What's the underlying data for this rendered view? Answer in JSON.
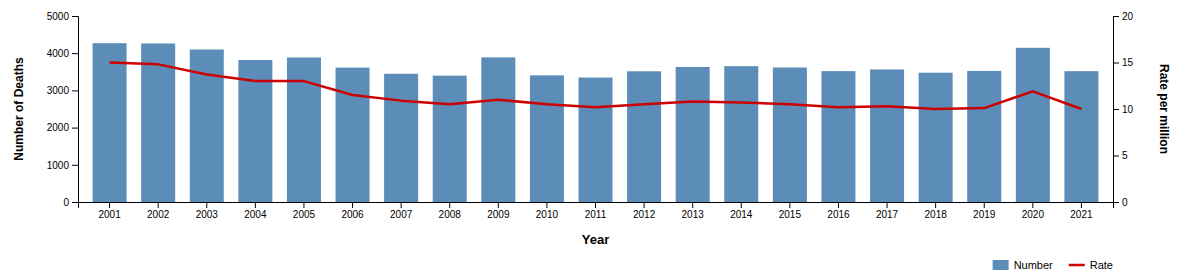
{
  "chart_data": {
    "type": "bar",
    "categories": [
      "2001",
      "2002",
      "2003",
      "2004",
      "2005",
      "2006",
      "2007",
      "2008",
      "2009",
      "2010",
      "2011",
      "2012",
      "2013",
      "2014",
      "2015",
      "2016",
      "2017",
      "2018",
      "2019",
      "2020",
      "2021"
    ],
    "xlabel": "Year",
    "ylabel": "Number of Deaths",
    "y2label": "Rate per million",
    "ylim": [
      0,
      5000
    ],
    "yticks": [
      0,
      1000,
      2000,
      3000,
      4000,
      5000
    ],
    "y2lim": [
      0,
      20
    ],
    "y2ticks": [
      0,
      5,
      10,
      15,
      20
    ],
    "grid": false,
    "legend": "lower right",
    "series": [
      {
        "name": "Number",
        "type": "bar",
        "color": "#5B8DB8",
        "values": [
          4269,
          4261,
          4099,
          3816,
          3884,
          3613,
          3447,
          3397,
          3888,
          3404,
          3345,
          3514,
          3630,
          3651,
          3615,
          3518,
          3564,
          3476,
          3524,
          4145,
          3517
        ]
      },
      {
        "name": "Rate",
        "type": "line",
        "axis": "y2",
        "color": "#CC0000",
        "values": [
          15.0,
          14.8,
          13.7,
          13.0,
          13.0,
          11.5,
          10.9,
          10.5,
          11.0,
          10.5,
          10.2,
          10.5,
          10.8,
          10.7,
          10.5,
          10.2,
          10.3,
          10.0,
          10.1,
          11.9,
          10.0
        ]
      }
    ]
  }
}
